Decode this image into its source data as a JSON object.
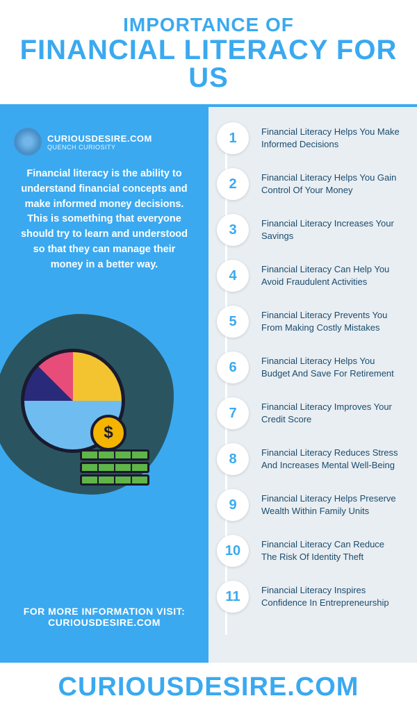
{
  "colors": {
    "primary_blue": "#3aa9f0",
    "dark_text": "#1a4c6e",
    "light_panel": "#e9eef2",
    "blob": "#2a5560",
    "pie_yellow": "#f4c430",
    "pie_pink": "#e84d7a",
    "pie_navy": "#2a2a7a",
    "pie_lightblue": "#6fbdf0",
    "coin": "#f4b400",
    "cash": "#5fb548",
    "white": "#ffffff"
  },
  "header": {
    "line1": "IMPORTANCE OF",
    "line1_fontsize": 28,
    "line2": "FINANCIAL LITERACY FOR US",
    "line2_fontsize": 40
  },
  "brand": {
    "name": "CURIOUSDESIRE.COM",
    "tagline": "QUENCH CURIOSITY"
  },
  "intro": "Financial literacy is the ability to understand financial concepts and make informed money decisions. This is something that everyone should try to learn and understood so that they can manage their money in a better way.",
  "cta": {
    "line1": "FOR MORE INFORMATION VISIT:",
    "line2": "CURIOUSDESIRE.COM"
  },
  "items": [
    {
      "n": "1",
      "label": "Financial Literacy Helps You Make Informed Decisions"
    },
    {
      "n": "2",
      "label": "Financial Literacy Helps You Gain Control Of Your Money"
    },
    {
      "n": "3",
      "label": "Financial Literacy Increases Your Savings"
    },
    {
      "n": "4",
      "label": "Financial Literacy Can Help You Avoid Fraudulent Activities"
    },
    {
      "n": "5",
      "label": "Financial Literacy Prevents You From Making Costly Mistakes"
    },
    {
      "n": "6",
      "label": "Financial Literacy Helps You Budget And Save For Retirement"
    },
    {
      "n": "7",
      "label": "Financial Literacy Improves Your Credit Score"
    },
    {
      "n": "8",
      "label": "Financial Literacy Reduces Stress And Increases Mental Well-Being"
    },
    {
      "n": "9",
      "label": "Financial Literacy Helps Preserve Wealth Within Family Units"
    },
    {
      "n": "10",
      "label": "Financial Literacy Can Reduce The Risk Of Identity Theft"
    },
    {
      "n": "11",
      "label": "Financial Literacy Inspires Confidence In Entrepreneurship"
    }
  ],
  "footer": {
    "text": "CURIOUSDESIRE.COM",
    "fontsize": 38
  }
}
